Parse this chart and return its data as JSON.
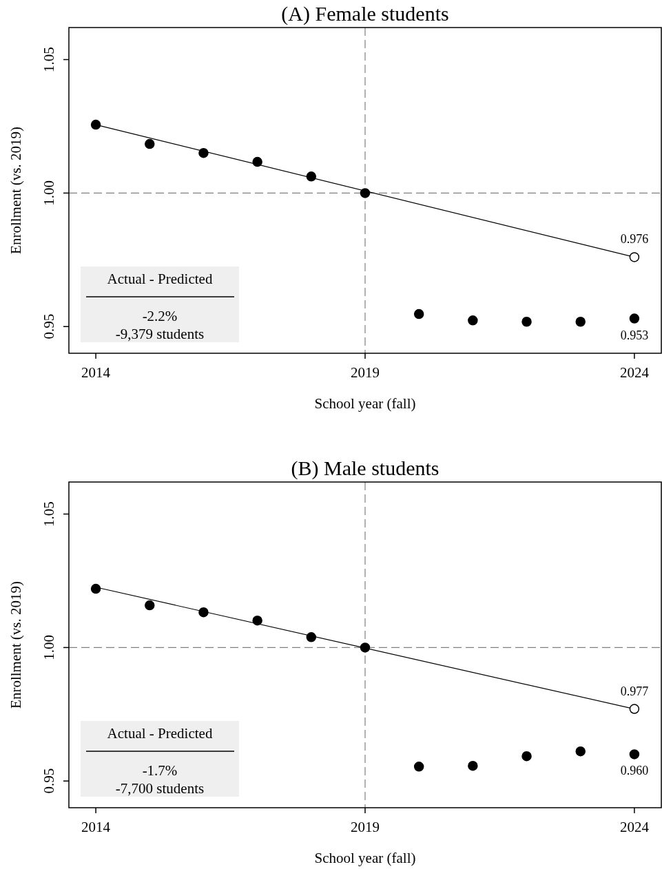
{
  "chart_data": [
    {
      "type": "scatter",
      "title": "(A) Female students",
      "xlabel": "School year (fall)",
      "ylabel": "Enrollment (vs. 2019)",
      "xlim": [
        2013.5,
        2024.5
      ],
      "xticks": [
        2014,
        2019,
        2024
      ],
      "ylim": [
        0.94,
        1.062
      ],
      "yticks": [
        {
          "value": 0.95,
          "label": "0.95"
        },
        {
          "value": 1,
          "label": "1.00"
        },
        {
          "value": 1.05,
          "label": "1.05"
        }
      ],
      "marker": "circle",
      "series": [
        {
          "type": "line",
          "color": "#000000",
          "marker": "none",
          "x": [
            2014,
            2024
          ],
          "values": [
            1.0256,
            0.976
          ]
        },
        {
          "type": "scatter",
          "color": "#000000",
          "x": [
            2014,
            2015,
            2016,
            2017,
            2018,
            2019,
            2020,
            2021,
            2022,
            2023,
            2024
          ],
          "values": [
            1.0256,
            1.0184,
            1.015,
            1.0117,
            1.0062,
            1.0,
            0.9547,
            0.9523,
            0.9518,
            0.9518,
            0.953
          ],
          "value_labels": [
            null,
            null,
            null,
            null,
            null,
            null,
            null,
            null,
            null,
            null,
            "0.953"
          ]
        },
        {
          "type": "scatter",
          "color": "#ffffff",
          "x": [
            2024
          ],
          "values": [
            0.976
          ],
          "value_labels": [
            "0.976"
          ]
        }
      ],
      "ref_lines": [
        {
          "axis": "x",
          "value": 2019,
          "color": "#7f7f7f",
          "line_style": "dashed"
        },
        {
          "axis": "y",
          "value": 1.0,
          "color": "#7f7f7f",
          "line_style": "dashed"
        }
      ],
      "annotations": [
        "Actual - Predicted",
        "-2.2%",
        "-9,379 students"
      ]
    },
    {
      "type": "scatter",
      "title": "(B) Male students",
      "xlabel": "School year (fall)",
      "ylabel": "Enrollment (vs. 2019)",
      "xlim": [
        2013.5,
        2024.5
      ],
      "xticks": [
        2014,
        2019,
        2024
      ],
      "ylim": [
        0.94,
        1.062
      ],
      "yticks": [
        {
          "value": 0.95,
          "label": "0.95"
        },
        {
          "value": 1,
          "label": "1.00"
        },
        {
          "value": 1.05,
          "label": "1.05"
        }
      ],
      "marker": "circle",
      "series": [
        {
          "type": "line",
          "color": "#000000",
          "marker": "none",
          "x": [
            2014,
            2024
          ],
          "values": [
            1.0226,
            0.977
          ]
        },
        {
          "type": "scatter",
          "color": "#000000",
          "x": [
            2014,
            2015,
            2016,
            2017,
            2018,
            2019,
            2020,
            2021,
            2022,
            2023,
            2024
          ],
          "values": [
            1.022,
            1.0158,
            1.0132,
            1.0101,
            1.0039,
            1.0,
            0.9554,
            0.9557,
            0.9593,
            0.9611,
            0.96
          ],
          "value_labels": [
            null,
            null,
            null,
            null,
            null,
            null,
            null,
            null,
            null,
            null,
            "0.960"
          ]
        },
        {
          "type": "scatter",
          "color": "#ffffff",
          "x": [
            2024
          ],
          "values": [
            0.977
          ],
          "value_labels": [
            "0.977"
          ]
        }
      ],
      "ref_lines": [
        {
          "axis": "x",
          "value": 2019,
          "color": "#7f7f7f",
          "line_style": "dashed"
        },
        {
          "axis": "y",
          "value": 1.0,
          "color": "#7f7f7f",
          "line_style": "dashed"
        }
      ],
      "annotations": [
        "Actual - Predicted",
        "-1.7%",
        "-7,700 students"
      ]
    }
  ]
}
